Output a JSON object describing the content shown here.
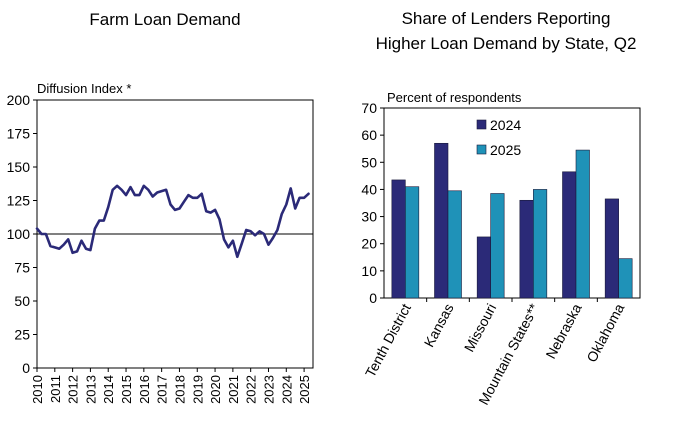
{
  "chart_data": [
    {
      "type": "line",
      "title": "Farm Loan Demand",
      "ylabel": "Diffusion Index *",
      "xlabel": "",
      "ylim": [
        0,
        200
      ],
      "yticks": [
        0,
        25,
        50,
        75,
        100,
        125,
        150,
        175,
        200
      ],
      "xlim": [
        2010,
        2025.5
      ],
      "xticks": [
        "2010",
        "2011",
        "2012",
        "2013",
        "2014",
        "2015",
        "2016",
        "2017",
        "2018",
        "2019",
        "2020",
        "2021",
        "2022",
        "2023",
        "2024",
        "2025"
      ],
      "reference_line": 100,
      "series": [
        {
          "name": "Farm Loan Demand",
          "color": "#2B2A78",
          "x": [
            2010.0,
            2010.25,
            2010.5,
            2010.75,
            2011.0,
            2011.25,
            2011.5,
            2011.75,
            2012.0,
            2012.25,
            2012.5,
            2012.75,
            2013.0,
            2013.25,
            2013.5,
            2013.75,
            2014.0,
            2014.25,
            2014.5,
            2014.75,
            2015.0,
            2015.25,
            2015.5,
            2015.75,
            2016.0,
            2016.25,
            2016.5,
            2016.75,
            2017.0,
            2017.25,
            2017.5,
            2017.75,
            2018.0,
            2018.25,
            2018.5,
            2018.75,
            2019.0,
            2019.25,
            2019.5,
            2019.75,
            2020.0,
            2020.25,
            2020.5,
            2020.75,
            2021.0,
            2021.25,
            2021.5,
            2021.75,
            2022.0,
            2022.25,
            2022.5,
            2022.75,
            2023.0,
            2023.25,
            2023.5,
            2023.75,
            2024.0,
            2024.25,
            2024.5,
            2024.75,
            2025.0,
            2025.25
          ],
          "values": [
            104,
            100,
            100,
            91,
            90,
            89,
            92,
            96,
            86,
            87,
            95,
            89,
            88,
            104,
            110,
            110,
            120,
            133,
            136,
            133,
            129,
            135,
            129,
            129,
            136,
            133,
            128,
            131,
            132,
            133,
            122,
            118,
            119,
            124,
            129,
            127,
            127,
            130,
            117,
            116,
            118,
            111,
            96,
            90,
            95,
            83,
            93,
            103,
            102,
            99,
            102,
            100,
            92,
            97,
            103,
            115,
            122,
            134,
            119,
            127,
            127,
            130
          ]
        }
      ]
    },
    {
      "type": "bar",
      "title": "Share of Lenders Reporting Higher Loan Demand by State, Q2",
      "ylabel": "Percent of respondents",
      "xlabel": "",
      "ylim": [
        0,
        70
      ],
      "yticks": [
        0,
        10,
        20,
        30,
        40,
        50,
        60,
        70
      ],
      "categories": [
        "Tenth District",
        "Kansas",
        "Missouri",
        "Mountain States**",
        "Nebraska",
        "Oklahoma"
      ],
      "legend_position": "top-center",
      "series": [
        {
          "name": "2024",
          "color": "#2B2A78",
          "values": [
            43.5,
            57,
            22.5,
            36,
            46.5,
            36.5
          ]
        },
        {
          "name": "2025",
          "color": "#1F92B8",
          "values": [
            41,
            39.5,
            38.5,
            40,
            54.5,
            14.5
          ]
        }
      ]
    }
  ]
}
